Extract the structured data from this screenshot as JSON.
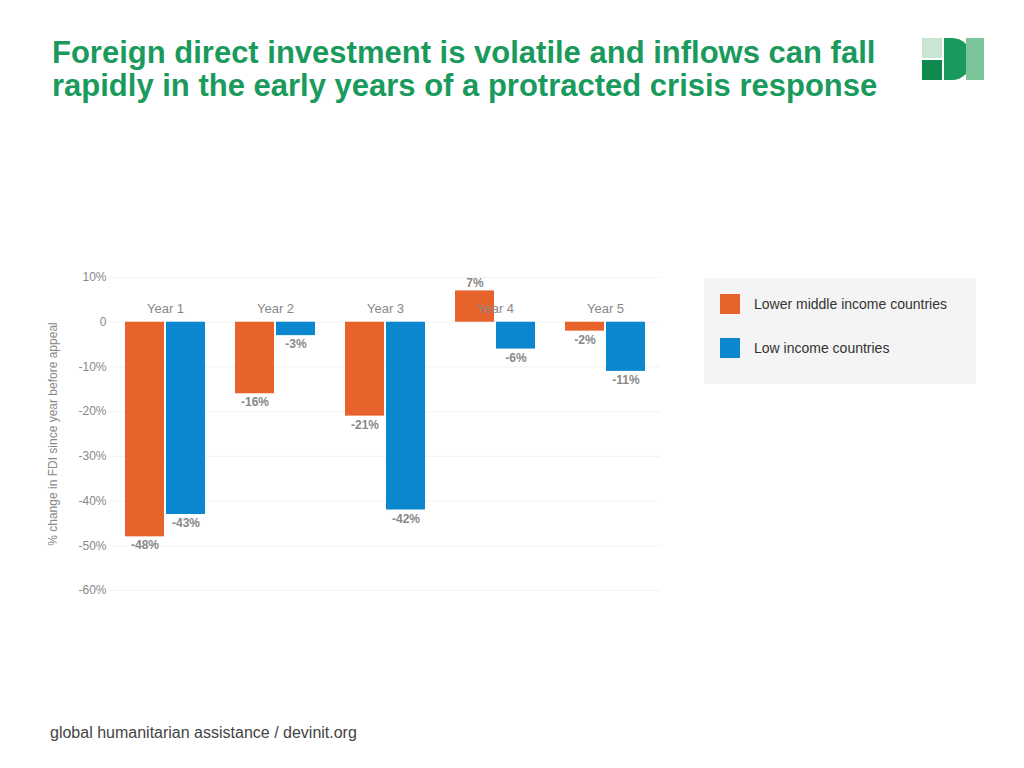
{
  "chart_data": {
    "type": "bar",
    "title": "Foreign direct investment is volatile and inflows can fall rapidly in the early years of a protracted crisis response",
    "y_label": "% change in FDI since year before appeal",
    "caption": "global humanitarian assistance / devinit.org",
    "categories": [
      "Year 1",
      "Year 2",
      "Year 3",
      "Year 4",
      "Year 5"
    ],
    "series": [
      {
        "name": "Lower middle income countries",
        "color": "#e8622c",
        "values": [
          -48,
          -16,
          -21,
          7,
          -2
        ],
        "value_labels": [
          "-48%",
          "-16%",
          "-21%",
          "7%",
          "-2%"
        ]
      },
      {
        "name": "Low income countries",
        "color": "#0a87cf",
        "values": [
          -43,
          -3,
          -42,
          -6,
          -11
        ],
        "value_labels": [
          "-43%",
          "-3%",
          "-42%",
          "-6%",
          "-11%"
        ]
      }
    ],
    "ylim": [
      -60,
      10
    ],
    "yticks": [
      {
        "value": 10,
        "label": "10%"
      },
      0,
      {
        "value": -10,
        "label": "-10%"
      },
      {
        "value": -20,
        "label": "-20%"
      },
      {
        "value": -30,
        "label": "-30%"
      },
      {
        "value": -40,
        "label": "-40%"
      },
      {
        "value": -50,
        "label": "-50%"
      },
      {
        "value": -60,
        "label": "-60%"
      }
    ],
    "grid": true,
    "data_labels": true,
    "legend": "right"
  }
}
